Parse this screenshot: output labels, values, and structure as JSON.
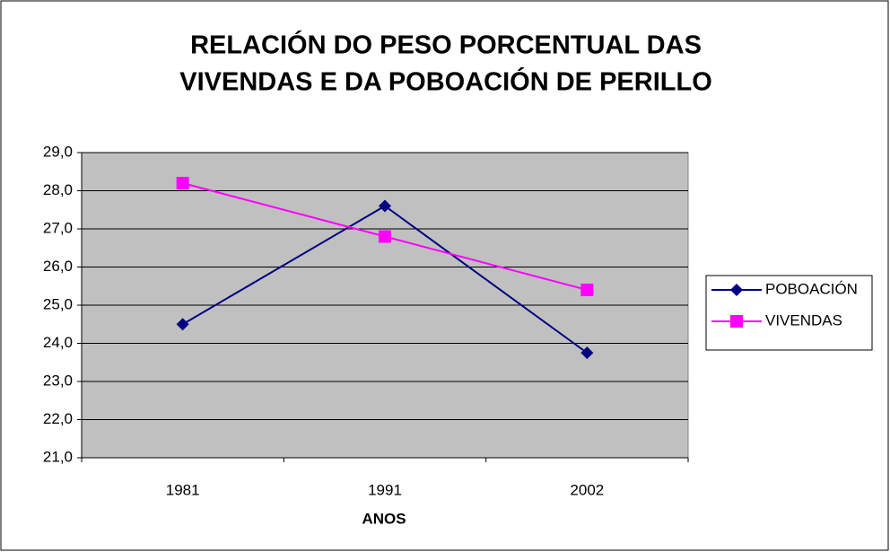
{
  "chart_data": {
    "type": "line",
    "title": [
      "RELACIÓN DO PESO PORCENTUAL DAS",
      "VIVENDAS E DA POBOACIÓN DE PERILLO"
    ],
    "x_label": "ANOS",
    "categories": [
      "1981",
      "1991",
      "2002"
    ],
    "series": [
      {
        "name": "POBOACIÓN",
        "color": "#000080",
        "marker": "diamond",
        "values": [
          24.5,
          27.6,
          23.75
        ]
      },
      {
        "name": "VIVENDAS",
        "color": "#ff00ff",
        "marker": "square",
        "values": [
          28.2,
          26.8,
          25.4
        ]
      }
    ],
    "ylim": [
      21,
      29
    ],
    "yticks": [
      {
        "value": 21,
        "label": "21,0"
      },
      {
        "value": 22,
        "label": "22,0"
      },
      {
        "value": 23,
        "label": "23,0"
      },
      {
        "value": 24,
        "label": "24,0"
      },
      {
        "value": 25,
        "label": "25,0"
      },
      {
        "value": 26,
        "label": "26,0"
      },
      {
        "value": 27,
        "label": "27,0"
      },
      {
        "value": 28,
        "label": "28,0"
      },
      {
        "value": 29,
        "label": "29,0"
      }
    ],
    "grid": true,
    "legend": "right"
  }
}
